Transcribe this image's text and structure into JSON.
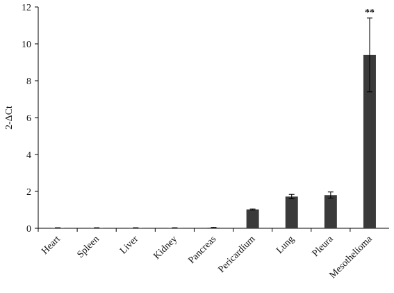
{
  "chart_data": {
    "type": "bar",
    "y_label": "2-ΔCt",
    "categories": [
      "Heart",
      "Spleen",
      "Liver",
      "Kidney",
      "Pancreas",
      "Pericardium",
      "Lung",
      "Pleura",
      "Mesothelioma"
    ],
    "values": [
      0.02,
      0.02,
      0.02,
      0.02,
      0.03,
      1.02,
      1.72,
      1.8,
      9.4
    ],
    "errors": [
      0.01,
      0.01,
      0.01,
      0.01,
      0.02,
      0.03,
      0.12,
      0.17,
      2.0
    ],
    "color": "#3a3a3a",
    "annotation": "**",
    "ylim": [
      0,
      12
    ],
    "yticks": [
      0,
      2,
      4,
      6,
      8,
      10,
      12
    ],
    "grid": false
  }
}
